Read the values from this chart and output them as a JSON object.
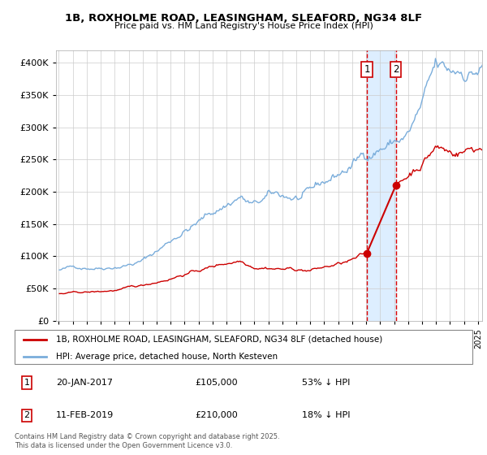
{
  "title": "1B, ROXHOLME ROAD, LEASINGHAM, SLEAFORD, NG34 8LF",
  "subtitle": "Price paid vs. HM Land Registry's House Price Index (HPI)",
  "hpi_color": "#7aaddb",
  "price_color": "#cc0000",
  "vline_color": "#dd0000",
  "shade_color": "#ddeeff",
  "annotation_box_color": "#cc0000",
  "background_color": "#ffffff",
  "grid_color": "#cccccc",
  "legend_label_red": "1B, ROXHOLME ROAD, LEASINGHAM, SLEAFORD, NG34 8LF (detached house)",
  "legend_label_blue": "HPI: Average price, detached house, North Kesteven",
  "footnote": "Contains HM Land Registry data © Crown copyright and database right 2025.\nThis data is licensed under the Open Government Licence v3.0.",
  "sale1_label": "1",
  "sale1_date": "20-JAN-2017",
  "sale1_price": "£105,000",
  "sale1_pct": "53% ↓ HPI",
  "sale2_label": "2",
  "sale2_date": "11-FEB-2019",
  "sale2_price": "£210,000",
  "sale2_pct": "18% ↓ HPI",
  "ylim": [
    0,
    420000
  ],
  "yticks": [
    0,
    50000,
    100000,
    150000,
    200000,
    250000,
    300000,
    350000,
    400000
  ],
  "sale1_x": 2017.05,
  "sale1_y": 105000,
  "sale2_x": 2019.12,
  "sale2_y": 210000,
  "xlim": [
    1994.8,
    2025.3
  ]
}
